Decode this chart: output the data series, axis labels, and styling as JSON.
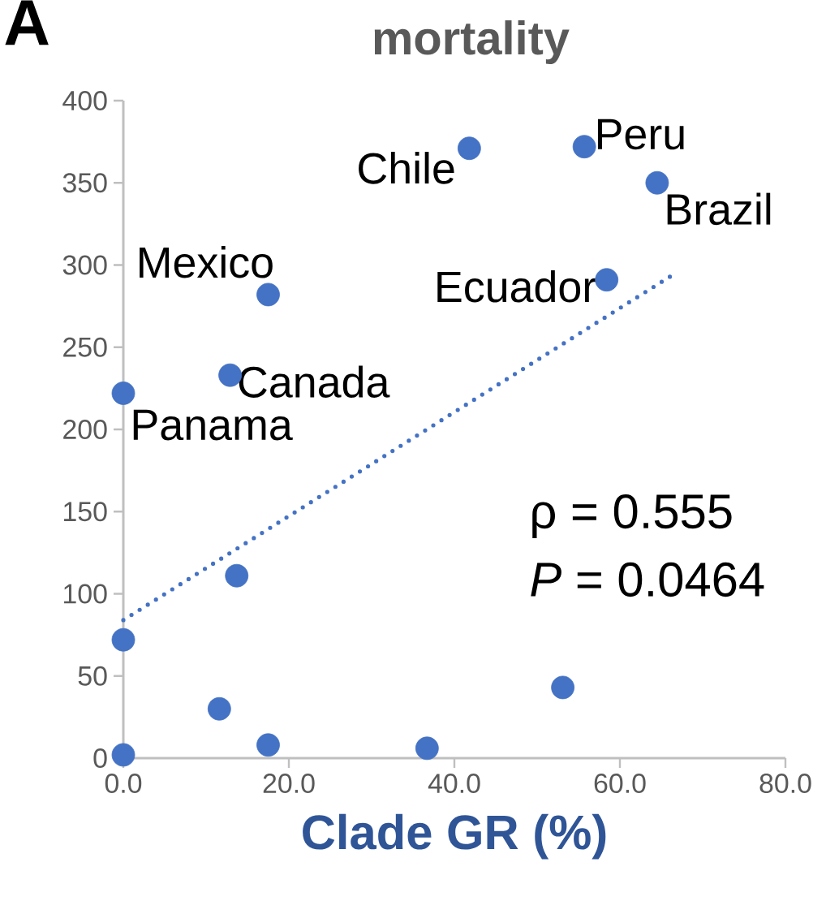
{
  "chart_data": {
    "type": "scatter",
    "title": "mortality",
    "xlabel": "Clade GR (%)",
    "xlim": [
      0,
      80
    ],
    "ylim": [
      0,
      400
    ],
    "xticks": [
      {
        "value": 0,
        "label": "0.0"
      },
      {
        "value": 20,
        "label": "20.0"
      },
      {
        "value": 40,
        "label": "40.0"
      },
      {
        "value": 60,
        "label": "60.0"
      },
      {
        "value": 80,
        "label": "80.0"
      }
    ],
    "yticks": [
      0,
      50,
      100,
      150,
      200,
      250,
      300,
      350,
      400
    ],
    "series": [
      {
        "color": "#4472c4",
        "x": [
          41.8,
          55.7,
          64.5,
          58.4,
          17.5,
          12.9,
          0,
          13.7,
          0,
          11.6,
          17.5,
          36.7,
          53.1,
          0
        ],
        "values": [
          371,
          372,
          350,
          291,
          282,
          233,
          222,
          111,
          72,
          30,
          8,
          6,
          43,
          2
        ]
      },
      {
        "type": "line",
        "color": "#4472c4",
        "line_style": "dotted",
        "x": [
          0,
          66.7
        ],
        "values": [
          84,
          295
        ]
      }
    ],
    "annotations": [
      {
        "text": "Chile",
        "x": 41.8,
        "y": 371
      },
      {
        "text": "Peru",
        "x": 55.7,
        "y": 372
      },
      {
        "text": "Brazil",
        "x": 64.5,
        "y": 350
      },
      {
        "text": "Ecuador",
        "x": 58.4,
        "y": 291
      },
      {
        "text": "Mexico",
        "x": 17.5,
        "y": 282
      },
      {
        "text": "Canada",
        "x": 12.9,
        "y": 233
      },
      {
        "text": "Panama",
        "x": 0,
        "y": 222
      },
      "ρ = 0.555",
      "*P* = 0.0464",
      "A"
    ]
  }
}
